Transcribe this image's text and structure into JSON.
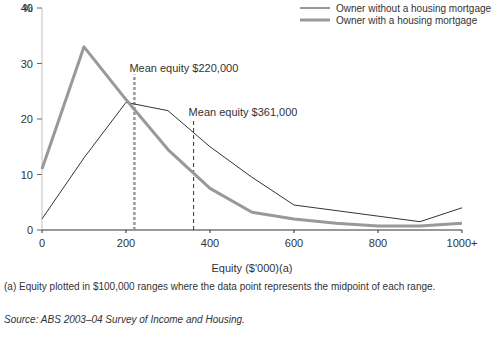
{
  "chart_data": {
    "type": "line",
    "y_label": "%",
    "x_label": "Equity ($'000)(a)",
    "footnote": "(a) Equity plotted in $100,000 ranges where the data point represents the midpoint of each range.",
    "source": "Source: ABS 2003–04 Survey of Income and Housing.",
    "x": [
      0,
      100,
      200,
      300,
      400,
      500,
      600,
      700,
      800,
      900,
      1000
    ],
    "series": [
      {
        "name": "Owner without a housing mortgage",
        "color": "#333333",
        "values": [
          2,
          13,
          23,
          21.5,
          15,
          9.5,
          4.5,
          3.5,
          2.5,
          1.5,
          4
        ]
      },
      {
        "name": "Owner with a housing mortgage",
        "color": "#999999",
        "values": [
          11,
          33,
          23.5,
          14.5,
          7.5,
          3.2,
          2,
          1.2,
          0.7,
          0.7,
          1.2
        ]
      }
    ],
    "annotations": [
      {
        "label": "Mean equity $220,000",
        "x": 220,
        "y_end": 28,
        "color": "#999999"
      },
      {
        "label": "Mean equity $361,000",
        "x": 361,
        "y_end": 20,
        "color": "#333333"
      }
    ],
    "xlim": [
      0,
      1000
    ],
    "xticks": [
      0,
      200,
      400,
      600,
      800,
      {
        "value": 1000,
        "label": "1000+"
      }
    ],
    "ylim": [
      0,
      40
    ],
    "yticks": [
      0,
      10,
      20,
      30,
      40
    ],
    "grid": false,
    "legend": "top-right"
  }
}
